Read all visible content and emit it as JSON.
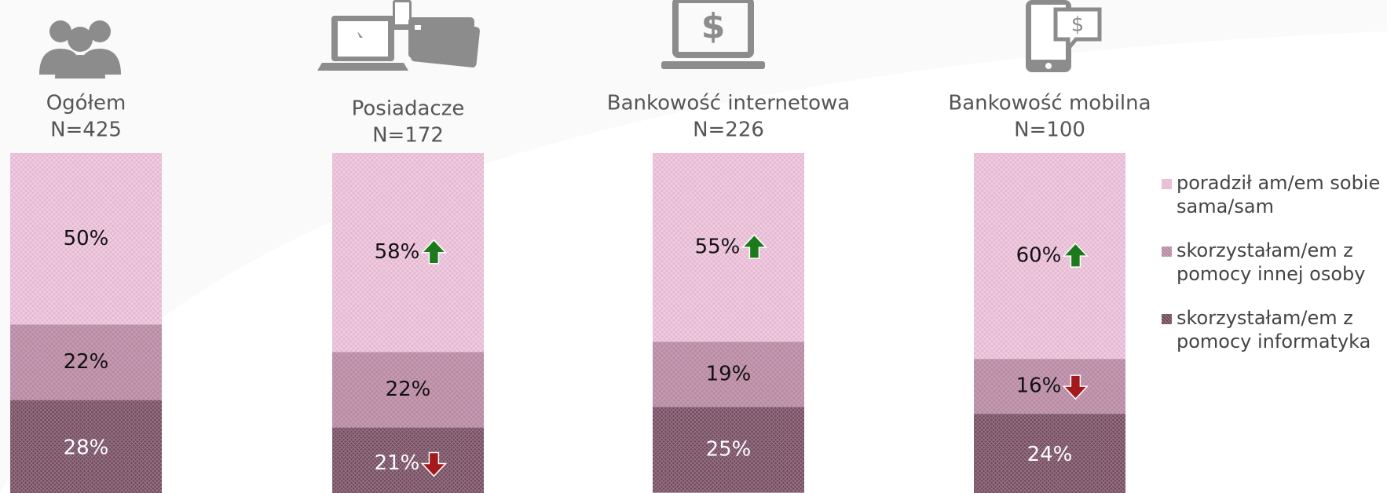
{
  "chart_data": {
    "type": "stacked_bar",
    "categories": [
      "Ogółem",
      "Posiadacze",
      "Bankowość internetowa",
      "Bankowość mobilna"
    ],
    "sample_sizes": [
      "N=425",
      "N=172",
      "N=226",
      "N=100"
    ],
    "ylim": [
      0,
      100
    ],
    "series": [
      {
        "name": "poradził am/em sobie sama/sam",
        "color": "#e6b9d3",
        "values": [
          50,
          58,
          55,
          60
        ],
        "value_labels": [
          "50%",
          "58%",
          "55%",
          "60%"
        ],
        "significance": [
          null,
          "up",
          "up",
          "up"
        ]
      },
      {
        "name": "skorzystałam/em z pomocy innej osoby",
        "color": "#b88aa3",
        "values": [
          22,
          22,
          19,
          16
        ],
        "value_labels": [
          "22%",
          "22%",
          "19%",
          "16%"
        ],
        "significance": [
          null,
          null,
          null,
          "down"
        ]
      },
      {
        "name": "skorzystałam/em z pomocy informatyka",
        "color": "#6e4a5c",
        "values": [
          28,
          21,
          25,
          24
        ],
        "value_labels": [
          "28%",
          "21%",
          "25%",
          "24%"
        ],
        "significance": [
          null,
          "down",
          null,
          null
        ]
      }
    ],
    "significance_colors": {
      "up": "#1c7a1c",
      "down": "#a3191c"
    },
    "legend": "right"
  }
}
